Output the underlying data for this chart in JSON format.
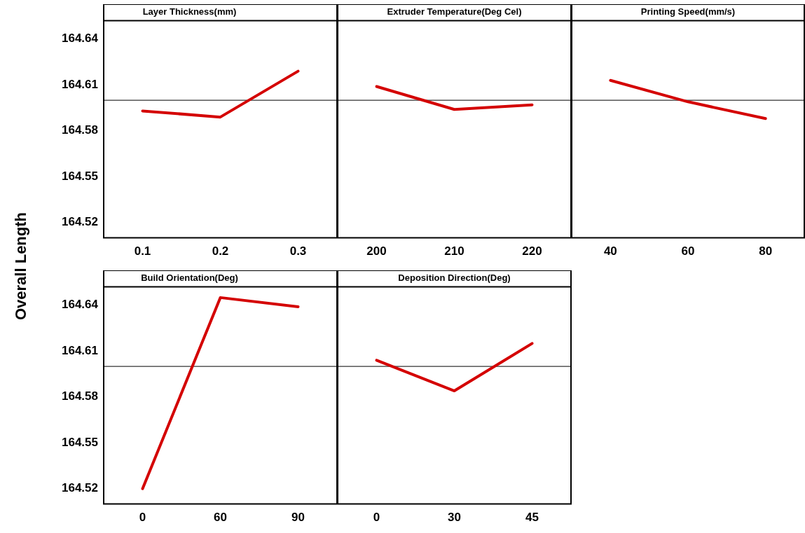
{
  "chart_data": [
    {
      "type": "line",
      "title": "Layer Thickness(mm)",
      "ylabel": "Overall Length",
      "categories": [
        "0.1",
        "0.2",
        "0.3"
      ],
      "values": [
        164.593,
        164.589,
        164.619
      ],
      "color": "#d40000",
      "ylim": [
        164.51,
        164.652
      ],
      "yticks": [
        164.52,
        164.55,
        164.58,
        164.61,
        164.64
      ],
      "ref_lines": [
        {
          "axis": "y",
          "value": 164.6,
          "color": "#000000"
        }
      ],
      "marker": "none",
      "line_style": "solid"
    },
    {
      "type": "line",
      "title": "Extruder Temperature(Deg Cel)",
      "categories": [
        "200",
        "210",
        "220"
      ],
      "values": [
        164.609,
        164.594,
        164.597
      ],
      "color": "#d40000",
      "ylim": [
        164.51,
        164.652
      ],
      "yticks": [
        164.52,
        164.55,
        164.58,
        164.61,
        164.64
      ],
      "ref_lines": [
        {
          "axis": "y",
          "value": 164.6,
          "color": "#000000"
        }
      ],
      "marker": "none",
      "line_style": "solid",
      "tick_labels": "x"
    },
    {
      "type": "line",
      "title": "Printing Speed(mm/s)",
      "categories": [
        "40",
        "60",
        "80"
      ],
      "values": [
        164.613,
        164.599,
        164.588
      ],
      "color": "#d40000",
      "ylim": [
        164.51,
        164.652
      ],
      "yticks": [
        164.52,
        164.55,
        164.58,
        164.61,
        164.64
      ],
      "ref_lines": [
        {
          "axis": "y",
          "value": 164.6,
          "color": "#000000"
        }
      ],
      "marker": "none",
      "line_style": "solid",
      "tick_labels": "x"
    },
    {
      "type": "line",
      "title": "Build Orientation(Deg)",
      "categories": [
        "0",
        "60",
        "90"
      ],
      "values": [
        164.52,
        164.645,
        164.639
      ],
      "color": "#d40000",
      "ylim": [
        164.51,
        164.652
      ],
      "yticks": [
        164.52,
        164.55,
        164.58,
        164.61,
        164.64
      ],
      "ref_lines": [
        {
          "axis": "y",
          "value": 164.6,
          "color": "#000000"
        }
      ],
      "marker": "none",
      "line_style": "solid"
    },
    {
      "type": "line",
      "title": "Deposition Direction(Deg)",
      "categories": [
        "0",
        "30",
        "45"
      ],
      "values": [
        164.604,
        164.584,
        164.615
      ],
      "color": "#d40000",
      "ylim": [
        164.51,
        164.652
      ],
      "yticks": [
        164.52,
        164.55,
        164.58,
        164.61,
        164.64
      ],
      "ref_lines": [
        {
          "axis": "y",
          "value": 164.6,
          "color": "#000000"
        }
      ],
      "marker": "none",
      "line_style": "solid",
      "tick_labels": "x"
    }
  ]
}
